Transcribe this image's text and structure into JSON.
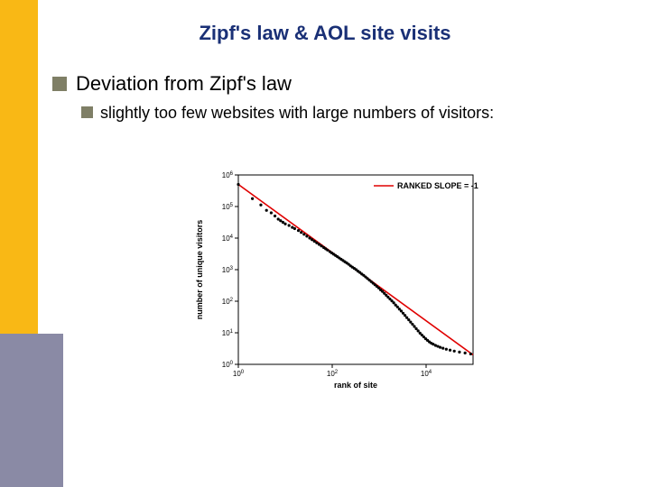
{
  "title": "Zipf's law & AOL site visits",
  "bullet1": "Deviation from Zipf's law",
  "bullet2": "slightly too few websites with large numbers of visitors:",
  "chart": {
    "type": "scatter",
    "xlabel": "rank of site",
    "ylabel": "number of unique visitors",
    "legend": "RANKED SLOPE = -1",
    "xscale": "log",
    "yscale": "log",
    "xlim_log10": [
      0,
      5
    ],
    "ylim_log10": [
      0,
      6
    ],
    "xtick_log10": [
      0,
      2,
      4
    ],
    "ytick_log10": [
      0,
      1,
      2,
      3,
      4,
      5,
      6
    ],
    "line_color": "#e00000",
    "point_color": "#000000",
    "background_color": "#ffffff",
    "axis_color": "#000000",
    "fit_line": {
      "x0_log10": 0,
      "y0_log10": 5.7,
      "x1_log10": 5,
      "y1_log10": 0.3
    },
    "points_log10": [
      [
        0.0,
        5.7
      ],
      [
        0.3,
        5.25
      ],
      [
        0.48,
        5.05
      ],
      [
        0.6,
        4.88
      ],
      [
        0.7,
        4.8
      ],
      [
        0.78,
        4.7
      ],
      [
        0.85,
        4.6
      ],
      [
        0.9,
        4.55
      ],
      [
        0.95,
        4.5
      ],
      [
        1.0,
        4.45
      ],
      [
        1.08,
        4.4
      ],
      [
        1.15,
        4.34
      ],
      [
        1.2,
        4.3
      ],
      [
        1.28,
        4.24
      ],
      [
        1.34,
        4.18
      ],
      [
        1.4,
        4.12
      ],
      [
        1.46,
        4.06
      ],
      [
        1.52,
        4.0
      ],
      [
        1.57,
        3.95
      ],
      [
        1.62,
        3.9
      ],
      [
        1.67,
        3.85
      ],
      [
        1.72,
        3.8
      ],
      [
        1.77,
        3.75
      ],
      [
        1.82,
        3.7
      ],
      [
        1.86,
        3.66
      ],
      [
        1.9,
        3.62
      ],
      [
        1.95,
        3.57
      ],
      [
        1.99,
        3.53
      ],
      [
        2.03,
        3.49
      ],
      [
        2.07,
        3.45
      ],
      [
        2.11,
        3.41
      ],
      [
        2.15,
        3.37
      ],
      [
        2.19,
        3.33
      ],
      [
        2.23,
        3.29
      ],
      [
        2.27,
        3.25
      ],
      [
        2.31,
        3.21
      ],
      [
        2.35,
        3.17
      ],
      [
        2.39,
        3.12
      ],
      [
        2.43,
        3.08
      ],
      [
        2.47,
        3.04
      ],
      [
        2.51,
        3.0
      ],
      [
        2.55,
        2.95
      ],
      [
        2.59,
        2.91
      ],
      [
        2.63,
        2.86
      ],
      [
        2.67,
        2.82
      ],
      [
        2.71,
        2.77
      ],
      [
        2.75,
        2.72
      ],
      [
        2.79,
        2.67
      ],
      [
        2.83,
        2.62
      ],
      [
        2.87,
        2.57
      ],
      [
        2.91,
        2.52
      ],
      [
        2.95,
        2.47
      ],
      [
        2.99,
        2.42
      ],
      [
        3.03,
        2.36
      ],
      [
        3.07,
        2.31
      ],
      [
        3.11,
        2.25
      ],
      [
        3.15,
        2.19
      ],
      [
        3.19,
        2.13
      ],
      [
        3.23,
        2.07
      ],
      [
        3.27,
        2.01
      ],
      [
        3.31,
        1.95
      ],
      [
        3.35,
        1.88
      ],
      [
        3.39,
        1.82
      ],
      [
        3.43,
        1.75
      ],
      [
        3.47,
        1.69
      ],
      [
        3.51,
        1.62
      ],
      [
        3.55,
        1.55
      ],
      [
        3.59,
        1.48
      ],
      [
        3.63,
        1.41
      ],
      [
        3.67,
        1.34
      ],
      [
        3.71,
        1.27
      ],
      [
        3.75,
        1.2
      ],
      [
        3.79,
        1.13
      ],
      [
        3.83,
        1.06
      ],
      [
        3.87,
        0.99
      ],
      [
        3.91,
        0.93
      ],
      [
        3.95,
        0.87
      ],
      [
        3.99,
        0.81
      ],
      [
        4.03,
        0.76
      ],
      [
        4.07,
        0.71
      ],
      [
        4.11,
        0.67
      ],
      [
        4.15,
        0.64
      ],
      [
        4.2,
        0.6
      ],
      [
        4.25,
        0.57
      ],
      [
        4.3,
        0.54
      ],
      [
        4.36,
        0.51
      ],
      [
        4.43,
        0.48
      ],
      [
        4.51,
        0.45
      ],
      [
        4.6,
        0.42
      ],
      [
        4.71,
        0.39
      ],
      [
        4.83,
        0.36
      ],
      [
        4.95,
        0.33
      ]
    ]
  }
}
